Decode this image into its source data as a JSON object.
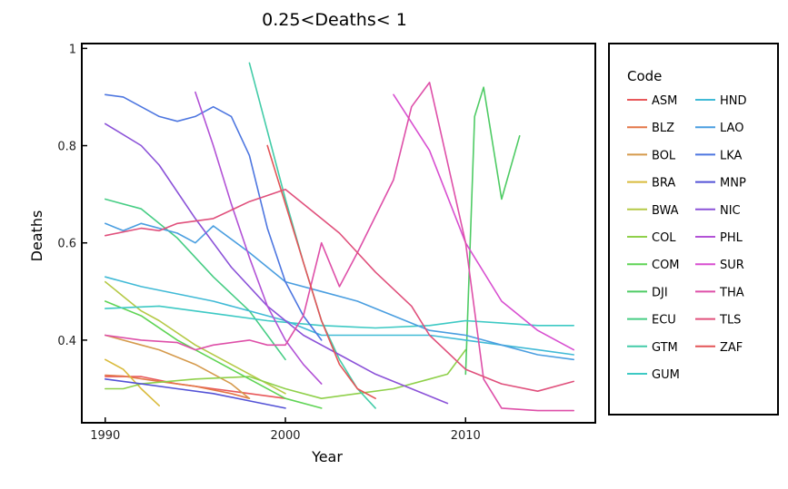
{
  "chart_data": {
    "type": "line",
    "title": "0.25<Deaths< 1",
    "xlabel": "Year",
    "ylabel": "Deaths",
    "xlim": [
      1988.7,
      2017.2
    ],
    "ylim": [
      0.23,
      1.01
    ],
    "xticks": [
      1990,
      2000,
      2010
    ],
    "yticks": [
      0.4,
      0.6,
      0.8,
      1
    ],
    "ytick_labels": [
      "0.4",
      "0.6",
      "0.8",
      "1"
    ],
    "grid": false,
    "legend": {
      "title": "Code",
      "placement": "right"
    },
    "series": [
      {
        "name": "ASM",
        "color": "#e8585a",
        "points": [
          [
            1990,
            0.325
          ],
          [
            1992,
            0.325
          ],
          [
            1994,
            0.31
          ],
          [
            1996,
            0.3
          ],
          [
            1998,
            0.29
          ],
          [
            2000,
            0.28
          ]
        ]
      },
      {
        "name": "BLZ",
        "color": "#e37748",
        "points": [
          [
            1990,
            0.328
          ],
          [
            1991,
            0.326
          ],
          [
            1993,
            0.315
          ],
          [
            1995,
            0.305
          ],
          [
            1997,
            0.29
          ],
          [
            1998,
            0.28
          ]
        ]
      },
      {
        "name": "BOL",
        "color": "#d59a4c",
        "points": [
          [
            1990,
            0.41
          ],
          [
            1992,
            0.39
          ],
          [
            1993,
            0.38
          ],
          [
            1995,
            0.35
          ],
          [
            1997,
            0.31
          ],
          [
            1998,
            0.28
          ]
        ]
      },
      {
        "name": "BRA",
        "color": "#d9bb3c",
        "points": [
          [
            1990,
            0.36
          ],
          [
            1991,
            0.34
          ],
          [
            1992,
            0.3
          ],
          [
            1993,
            0.265
          ]
        ]
      },
      {
        "name": "BWA",
        "color": "#b5c946",
        "points": [
          [
            1990,
            0.52
          ],
          [
            1991,
            0.49
          ],
          [
            1992,
            0.46
          ],
          [
            1993,
            0.44
          ],
          [
            1995,
            0.39
          ],
          [
            1997,
            0.35
          ],
          [
            1999,
            0.31
          ],
          [
            2000,
            0.29
          ]
        ]
      },
      {
        "name": "COL",
        "color": "#8fd04a",
        "points": [
          [
            1990,
            0.3
          ],
          [
            1991,
            0.3
          ],
          [
            1992,
            0.31
          ],
          [
            1995,
            0.32
          ],
          [
            1998,
            0.325
          ],
          [
            2000,
            0.3
          ],
          [
            2002,
            0.28
          ],
          [
            2004,
            0.29
          ],
          [
            2006,
            0.3
          ],
          [
            2008,
            0.32
          ],
          [
            2009,
            0.33
          ],
          [
            2010,
            0.38
          ]
        ]
      },
      {
        "name": "COM",
        "color": "#5fd455",
        "points": [
          [
            1990,
            0.48
          ],
          [
            1992,
            0.45
          ],
          [
            1994,
            0.4
          ],
          [
            1996,
            0.36
          ],
          [
            1998,
            0.32
          ],
          [
            2000,
            0.28
          ],
          [
            2002,
            0.26
          ]
        ]
      },
      {
        "name": "DJI",
        "color": "#4ecb64",
        "points": [
          [
            2010,
            0.33
          ],
          [
            2010.5,
            0.86
          ],
          [
            2011,
            0.92
          ],
          [
            2012,
            0.69
          ],
          [
            2013,
            0.82
          ]
        ]
      },
      {
        "name": "ECU",
        "color": "#46cd84",
        "points": [
          [
            1990,
            0.69
          ],
          [
            1992,
            0.67
          ],
          [
            1994,
            0.61
          ],
          [
            1996,
            0.53
          ],
          [
            1998,
            0.46
          ],
          [
            2000,
            0.36
          ]
        ]
      },
      {
        "name": "GTM",
        "color": "#43cca8",
        "points": [
          [
            1998,
            0.97
          ],
          [
            1999,
            0.83
          ],
          [
            2000,
            0.69
          ],
          [
            2001,
            0.56
          ],
          [
            2002,
            0.44
          ],
          [
            2003,
            0.36
          ],
          [
            2004,
            0.3
          ],
          [
            2005,
            0.26
          ]
        ]
      },
      {
        "name": "GUM",
        "color": "#3dc9c4",
        "points": [
          [
            1990,
            0.465
          ],
          [
            1993,
            0.47
          ],
          [
            1996,
            0.455
          ],
          [
            1999,
            0.44
          ],
          [
            2002,
            0.43
          ],
          [
            2005,
            0.425
          ],
          [
            2008,
            0.43
          ],
          [
            2010,
            0.44
          ],
          [
            2012,
            0.435
          ],
          [
            2014,
            0.43
          ],
          [
            2016,
            0.43
          ]
        ]
      },
      {
        "name": "HND",
        "color": "#40bad6",
        "points": [
          [
            1990,
            0.53
          ],
          [
            1992,
            0.51
          ],
          [
            1996,
            0.48
          ],
          [
            2000,
            0.44
          ],
          [
            2002,
            0.41
          ],
          [
            2005,
            0.41
          ],
          [
            2008,
            0.41
          ],
          [
            2010,
            0.4
          ],
          [
            2012,
            0.39
          ],
          [
            2014,
            0.38
          ],
          [
            2016,
            0.37
          ]
        ]
      },
      {
        "name": "LAO",
        "color": "#4a9ee0",
        "points": [
          [
            1990,
            0.64
          ],
          [
            1991,
            0.625
          ],
          [
            1992,
            0.64
          ],
          [
            1994,
            0.62
          ],
          [
            1995,
            0.6
          ],
          [
            1996,
            0.635
          ],
          [
            1998,
            0.58
          ],
          [
            2000,
            0.52
          ],
          [
            2002,
            0.5
          ],
          [
            2004,
            0.48
          ],
          [
            2006,
            0.45
          ],
          [
            2008,
            0.42
          ],
          [
            2010,
            0.41
          ],
          [
            2012,
            0.39
          ],
          [
            2014,
            0.37
          ],
          [
            2016,
            0.36
          ]
        ]
      },
      {
        "name": "LKA",
        "color": "#4d76e0",
        "points": [
          [
            1990,
            0.905
          ],
          [
            1991,
            0.9
          ],
          [
            1993,
            0.86
          ],
          [
            1994,
            0.85
          ],
          [
            1995,
            0.86
          ],
          [
            1996,
            0.88
          ],
          [
            1997,
            0.86
          ],
          [
            1998,
            0.78
          ],
          [
            1999,
            0.63
          ],
          [
            2000,
            0.52
          ],
          [
            2001,
            0.45
          ],
          [
            2002,
            0.4
          ]
        ]
      },
      {
        "name": "MNP",
        "color": "#5352d6",
        "points": [
          [
            1990,
            0.32
          ],
          [
            1992,
            0.31
          ],
          [
            1994,
            0.3
          ],
          [
            1996,
            0.29
          ],
          [
            1998,
            0.275
          ],
          [
            2000,
            0.26
          ]
        ]
      },
      {
        "name": "NIC",
        "color": "#8b52d8",
        "points": [
          [
            1990,
            0.845
          ],
          [
            1992,
            0.8
          ],
          [
            1993,
            0.76
          ],
          [
            1995,
            0.65
          ],
          [
            1997,
            0.55
          ],
          [
            1999,
            0.47
          ],
          [
            2001,
            0.41
          ],
          [
            2003,
            0.37
          ],
          [
            2005,
            0.33
          ],
          [
            2007,
            0.3
          ],
          [
            2009,
            0.27
          ]
        ]
      },
      {
        "name": "PHL",
        "color": "#b252d6",
        "points": [
          [
            1995,
            0.91
          ],
          [
            1996,
            0.8
          ],
          [
            1997,
            0.68
          ],
          [
            1998,
            0.57
          ],
          [
            1999,
            0.47
          ],
          [
            2000,
            0.4
          ],
          [
            2001,
            0.35
          ],
          [
            2002,
            0.31
          ]
        ]
      },
      {
        "name": "SUR",
        "color": "#d84fd0",
        "points": [
          [
            2006,
            0.905
          ],
          [
            2008,
            0.79
          ],
          [
            2010,
            0.6
          ],
          [
            2012,
            0.48
          ],
          [
            2014,
            0.42
          ],
          [
            2016,
            0.38
          ]
        ]
      },
      {
        "name": "THA",
        "color": "#de4fa8",
        "points": [
          [
            1990,
            0.41
          ],
          [
            1992,
            0.4
          ],
          [
            1994,
            0.395
          ],
          [
            1995,
            0.38
          ],
          [
            1996,
            0.39
          ],
          [
            1998,
            0.4
          ],
          [
            1999,
            0.39
          ],
          [
            2000,
            0.39
          ],
          [
            2001,
            0.45
          ],
          [
            2002,
            0.6
          ],
          [
            2003,
            0.51
          ],
          [
            2004,
            0.58
          ],
          [
            2006,
            0.73
          ],
          [
            2007,
            0.88
          ],
          [
            2008,
            0.93
          ],
          [
            2010,
            0.6
          ],
          [
            2011,
            0.32
          ],
          [
            2012,
            0.26
          ],
          [
            2014,
            0.255
          ],
          [
            2016,
            0.255
          ]
        ]
      },
      {
        "name": "TLS",
        "color": "#e0507c",
        "points": [
          [
            1990,
            0.615
          ],
          [
            1992,
            0.63
          ],
          [
            1993,
            0.625
          ],
          [
            1994,
            0.64
          ],
          [
            1996,
            0.65
          ],
          [
            1998,
            0.685
          ],
          [
            2000,
            0.71
          ],
          [
            2002,
            0.65
          ],
          [
            2003,
            0.62
          ],
          [
            2005,
            0.54
          ],
          [
            2007,
            0.47
          ],
          [
            2008,
            0.41
          ],
          [
            2010,
            0.34
          ],
          [
            2012,
            0.31
          ],
          [
            2014,
            0.295
          ],
          [
            2016,
            0.315
          ]
        ]
      },
      {
        "name": "ZAF",
        "color": "#e35457",
        "points": [
          [
            1999,
            0.8
          ],
          [
            2000,
            0.68
          ],
          [
            2001,
            0.56
          ],
          [
            2002,
            0.44
          ],
          [
            2003,
            0.35
          ],
          [
            2004,
            0.3
          ],
          [
            2005,
            0.28
          ]
        ]
      }
    ]
  }
}
